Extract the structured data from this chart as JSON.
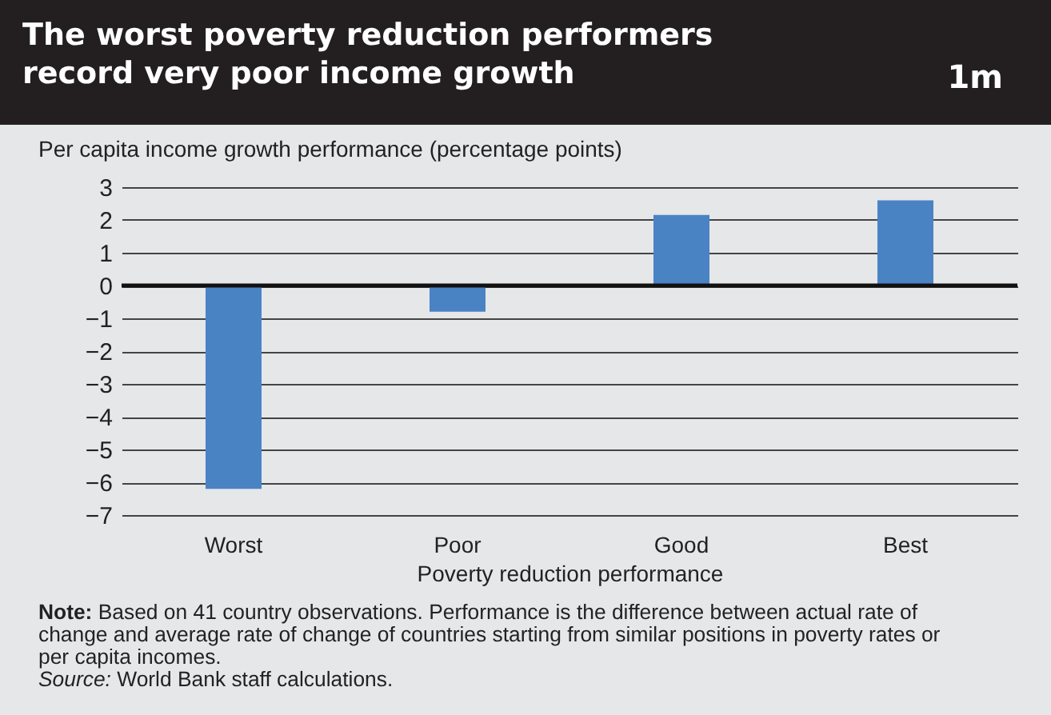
{
  "chart_data": {
    "type": "bar",
    "title": "The worst poverty reduction performers record very poor income growth",
    "subtitle": "1m",
    "ylabel": "Per capita income growth performance (percentage points)",
    "xlabel": "Poverty reduction performance",
    "categories": [
      "Worst",
      "Poor",
      "Good",
      "Best"
    ],
    "values": [
      -6.2,
      -0.8,
      2.15,
      2.6
    ],
    "color": "#4a83c4",
    "ylim": [
      -7,
      3
    ],
    "yticks": [
      {
        "value": -7,
        "label": "−7"
      },
      {
        "value": -6,
        "label": "−6"
      },
      {
        "value": -5,
        "label": "−5"
      },
      {
        "value": -4,
        "label": "−4"
      },
      {
        "value": -3,
        "label": "−3"
      },
      {
        "value": -2,
        "label": "−2"
      },
      {
        "value": -1,
        "label": "−1"
      },
      0,
      1,
      2,
      3
    ],
    "grid": "y",
    "ref_lines": [
      {
        "axis": "y",
        "value": 0,
        "color": "#111111"
      }
    ],
    "annotations": [
      "Note: Based on 41 country observations. Performance is the difference between actual rate of change and average rate of change of countries starting from similar positions in poverty rates or per capita incomes.",
      "Source: World Bank staff calculations."
    ]
  }
}
